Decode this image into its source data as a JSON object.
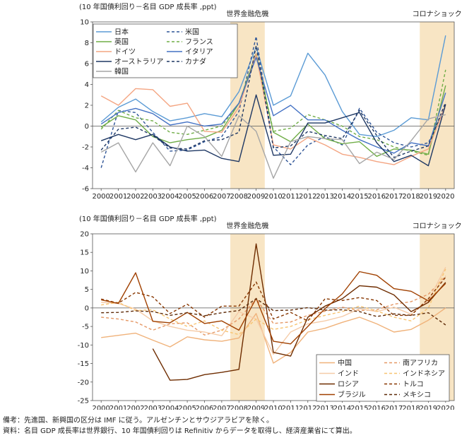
{
  "chart_data": [
    {
      "type": "line",
      "title": "",
      "unit_label": "(10 年国債利回り－名目 GDP 成長率 ,ppt)",
      "xlabel": "",
      "ylabel": "",
      "x": [
        2000,
        2001,
        2002,
        2003,
        2004,
        2005,
        2006,
        2007,
        2008,
        2009,
        2010,
        2011,
        2012,
        2013,
        2014,
        2015,
        2016,
        2017,
        2018,
        2019,
        2020
      ],
      "x_tick_labels": [
        "2000",
        "2001",
        "2002",
        "2003",
        "2004",
        "2005",
        "2006",
        "2007",
        "2008",
        "2009",
        "2010",
        "2011",
        "2012",
        "2013",
        "2014",
        "2015",
        "2016",
        "2017",
        "2018",
        "2019",
        "2020"
      ],
      "ylim": [
        -6,
        10
      ],
      "y_ticks": [
        -6,
        -4,
        -2,
        0,
        2,
        4,
        6,
        8,
        10
      ],
      "grid": false,
      "legend_position": "top-left",
      "shaded_periods": [
        {
          "label": "世界金融危機",
          "from": 2008,
          "to": 2009
        },
        {
          "label": "コロナショック",
          "from": 2019,
          "to": 2020
        }
      ],
      "series": [
        {
          "name": "日本",
          "color": "#5b9bd5",
          "dash": "solid",
          "values": [
            0.4,
            1.8,
            2.6,
            1.4,
            0.5,
            0.8,
            1.2,
            0.9,
            3.3,
            7.6,
            2.0,
            2.9,
            7.0,
            4.9,
            1.4,
            -0.8,
            -1.0,
            -0.4,
            0.8,
            0.6,
            8.7
          ]
        },
        {
          "name": "米国",
          "color": "#2f5597",
          "dash": "dashed",
          "values": [
            -4.0,
            1.5,
            1.3,
            -0.6,
            -2.4,
            -2.3,
            -1.5,
            -1.0,
            1.4,
            8.6,
            -2.0,
            -3.7,
            -1.8,
            -1.0,
            -1.8,
            1.7,
            -0.6,
            -1.6,
            -2.0,
            -1.6,
            1.9
          ]
        },
        {
          "name": "英国",
          "color": "#70ad47",
          "dash": "solid",
          "values": [
            -0.1,
            1.0,
            0.6,
            -1.0,
            -1.6,
            -1.3,
            -1.1,
            -0.4,
            2.2,
            6.9,
            -0.6,
            -1.5,
            0.2,
            -1.2,
            -1.7,
            -1.5,
            -2.9,
            -2.2,
            -2.3,
            -2.7,
            3.9
          ]
        },
        {
          "name": "フランス",
          "color": "#70ad47",
          "dash": "dashed",
          "values": [
            -0.3,
            1.5,
            0.8,
            0.5,
            -0.6,
            -0.8,
            -0.4,
            0.0,
            2.2,
            7.0,
            -0.5,
            -0.2,
            1.1,
            0.6,
            0.0,
            -1.0,
            -1.3,
            -2.0,
            -2.4,
            -2.8,
            5.4
          ]
        },
        {
          "name": "ドイツ",
          "color": "#f4a582",
          "dash": "solid",
          "values": [
            2.9,
            2.0,
            3.6,
            3.5,
            1.9,
            2.2,
            -0.5,
            -0.6,
            1.8,
            6.9,
            -1.8,
            -2.2,
            -1.1,
            -1.8,
            -2.7,
            -3.0,
            -3.4,
            -3.7,
            -2.9,
            -2.2,
            2.0
          ]
        },
        {
          "name": "イタリア",
          "color": "#4472c4",
          "dash": "solid",
          "values": [
            0.2,
            1.3,
            1.7,
            1.2,
            0.1,
            0.4,
            0.0,
            0.2,
            2.2,
            6.6,
            1.0,
            2.0,
            0.6,
            0.6,
            -0.4,
            -1.3,
            -2.0,
            -2.6,
            -1.6,
            -1.9,
            3.2
          ]
        },
        {
          "name": "オーストラリア",
          "color": "#1f3864",
          "dash": "solid",
          "values": [
            -1.4,
            -0.8,
            -1.3,
            -0.8,
            -2.0,
            -2.4,
            -2.3,
            -3.1,
            -3.4,
            3.0,
            -2.8,
            -2.7,
            0.3,
            0.3,
            0.8,
            1.3,
            -1.6,
            -3.4,
            -2.8,
            -3.8,
            2.1
          ]
        },
        {
          "name": "カナダ",
          "color": "#1f3864",
          "dash": "dashed",
          "values": [
            -2.3,
            -0.3,
            -0.1,
            -0.9,
            -2.1,
            -2.2,
            -1.4,
            -1.3,
            -0.6,
            7.7,
            -2.1,
            -1.9,
            -0.5,
            -0.9,
            -1.2,
            1.5,
            -0.9,
            -3.0,
            -2.4,
            -1.9,
            2.3
          ]
        },
        {
          "name": "韓国",
          "color": "#a6a6a6",
          "dash": "solid",
          "values": [
            -2.5,
            -1.6,
            -4.4,
            -1.6,
            -3.8,
            0.0,
            -1.0,
            -2.9,
            1.0,
            -0.5,
            -5.0,
            -1.5,
            -1.0,
            -1.2,
            -1.3,
            -3.6,
            -2.5,
            -3.2,
            -1.4,
            0.7,
            1.1
          ]
        }
      ]
    },
    {
      "type": "line",
      "title": "",
      "unit_label": "(10 年国債利回り－名目 GDP 成長率 ,ppt)",
      "xlabel": "",
      "ylabel": "",
      "x": [
        2000,
        2001,
        2002,
        2003,
        2004,
        2005,
        2006,
        2007,
        2008,
        2009,
        2010,
        2011,
        2012,
        2013,
        2014,
        2015,
        2016,
        2017,
        2018,
        2019,
        2020
      ],
      "x_tick_labels": [
        "2000",
        "2001",
        "2002",
        "2003",
        "2004",
        "2005",
        "2006",
        "2007",
        "2008",
        "2009",
        "2010",
        "2011",
        "2012",
        "2013",
        "2014",
        "2015",
        "2016",
        "2017",
        "2018",
        "2019",
        "2020"
      ],
      "ylim": [
        -25,
        20
      ],
      "y_ticks": [
        -25,
        -20,
        -15,
        -10,
        -5,
        0,
        5,
        10,
        15,
        20
      ],
      "grid": false,
      "legend_position": "bottom-right",
      "shaded_periods": [
        {
          "label": "世界金融危機",
          "from": 2008,
          "to": 2009
        },
        {
          "label": "コロナショック",
          "from": 2019,
          "to": 2020
        }
      ],
      "series": [
        {
          "name": "中国",
          "color": "#f0b27a",
          "dash": "solid",
          "values": [
            -8.0,
            -7.4,
            -6.8,
            -8.7,
            -10.5,
            -7.8,
            -8.6,
            -9.0,
            -8.1,
            -1.5,
            -14.9,
            -12.0,
            -6.5,
            -5.5,
            -3.9,
            -2.5,
            -4.3,
            -6.5,
            -5.8,
            -3.3,
            0.0
          ]
        },
        {
          "name": "南アフリカ",
          "color": "#e59866",
          "dash": "dashed",
          "values": [
            -2.5,
            -3.0,
            -3.8,
            -6.0,
            -4.3,
            -4.0,
            -7.3,
            -6.0,
            -3.0,
            2.5,
            -4.2,
            -3.8,
            -2.0,
            -0.9,
            0.2,
            -0.7,
            -0.5,
            1.0,
            1.7,
            3.7,
            8.6
          ]
        },
        {
          "name": "インド",
          "color": "#f5cba7",
          "dash": "solid",
          "values": [
            1.5,
            1.2,
            -0.3,
            -3.5,
            -5.0,
            -6.0,
            -6.5,
            -7.5,
            -1.0,
            -3.0,
            -12.5,
            -6.5,
            -4.3,
            -3.5,
            -2.3,
            -0.2,
            -1.0,
            0.2,
            -1.7,
            2.0,
            11.0
          ]
        },
        {
          "name": "インドネシア",
          "color": "#f8c471",
          "dash": "dashed",
          "values": [
            0.8,
            1.5,
            -0.7,
            -0.5,
            -3.0,
            -5.0,
            -3.5,
            -6.0,
            -7.2,
            -3.0,
            -5.8,
            -5.0,
            -3.2,
            -2.0,
            -1.0,
            0.5,
            -0.8,
            -2.5,
            -3.5,
            0.0,
            10.5
          ]
        },
        {
          "name": "ロシア",
          "color": "#6e2c00",
          "dash": "solid",
          "values": [
            null,
            null,
            null,
            -11.0,
            -19.5,
            -19.3,
            -18.0,
            -17.4,
            -16.6,
            17.3,
            -12.0,
            -13.0,
            -2.5,
            0.5,
            2.5,
            6.0,
            5.6,
            3.5,
            -1.0,
            1.5,
            6.9
          ]
        },
        {
          "name": "トルコ",
          "color": "#873600",
          "dash": "dashed",
          "values": [
            2.4,
            1.3,
            4.2,
            3.0,
            -1.5,
            1.0,
            -2.5,
            0.5,
            0.5,
            7.0,
            -3.0,
            -1.2,
            -3.5,
            2.5,
            2.0,
            2.8,
            2.0,
            -2.0,
            -2.0,
            2.5,
            8.3
          ]
        },
        {
          "name": "ブラジル",
          "color": "#a04000",
          "dash": "solid",
          "values": [
            2.2,
            1.2,
            9.5,
            -3.6,
            -4.0,
            -1.2,
            -4.2,
            -3.5,
            -6.0,
            2.6,
            -9.0,
            -9.7,
            -5.0,
            -0.2,
            3.8,
            9.8,
            8.8,
            5.2,
            4.5,
            1.9,
            6.6
          ]
        },
        {
          "name": "メキシコ",
          "color": "#5d2906",
          "dash": "dashed",
          "values": [
            -1.3,
            -1.2,
            -0.8,
            -1.0,
            -2.0,
            -1.3,
            -2.1,
            -1.3,
            -0.7,
            2.5,
            -0.7,
            -0.6,
            0.1,
            -0.6,
            -0.5,
            -1.0,
            -2.3,
            -1.6,
            -2.0,
            -1.3,
            -4.6
          ]
        }
      ]
    }
  ],
  "notes": {
    "line1": "備考：先進国、新興国の区分は IMF に従う。アルゼンチンとサウジアラビアを除く。",
    "line2": "資料：名目 GDP 成長率は世界銀行、10 年国債利回りは Refinitiv からデータを取得し、経済産業省にて算出。"
  }
}
